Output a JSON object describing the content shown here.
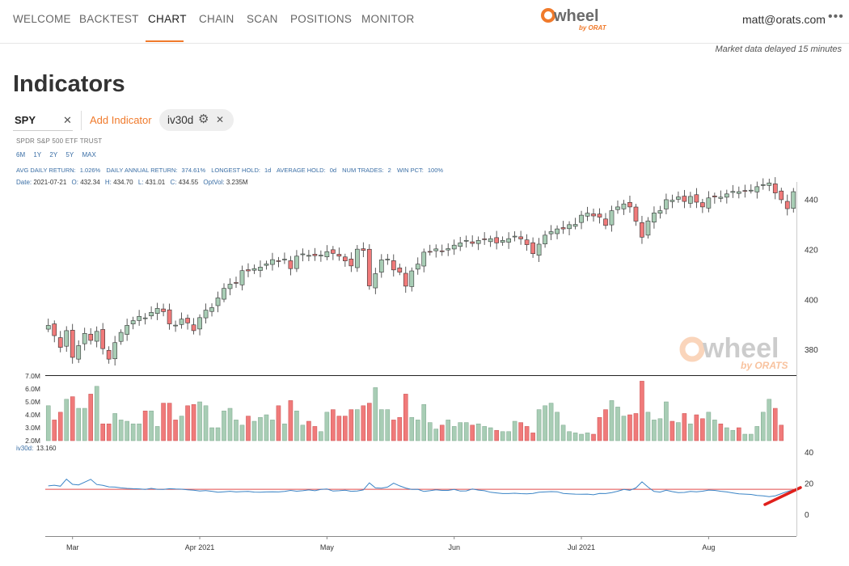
{
  "nav": {
    "items": [
      "WELCOME",
      "BACKTEST",
      "CHART",
      "CHAIN",
      "SCAN",
      "POSITIONS",
      "MONITOR"
    ],
    "active": "CHART",
    "accent": "#f07a2b"
  },
  "logo": {
    "text": "wheel",
    "sub": "by ORATS"
  },
  "user": {
    "email": "matt@orats.com",
    "menu_icon": "more-dots-icon"
  },
  "market_note": "Market data delayed 15 minutes",
  "page_title": "Indicators",
  "symbol": {
    "value": "SPY",
    "clear_icon": "close-icon"
  },
  "add_indicator_label": "Add Indicator",
  "indicator_chip": {
    "label": "iv30d",
    "settings_icon": "gear-icon",
    "remove_icon": "close-icon"
  },
  "etf_name": "SPDR S&P 500 ETF TRUST",
  "ranges": [
    "6M",
    "1Y",
    "2Y",
    "5Y",
    "MAX"
  ],
  "stats": [
    {
      "label": "AVG DAILY RETURN:",
      "value": "1.026%"
    },
    {
      "label": "DAILY ANNUAL RETURN:",
      "value": "374.61%"
    },
    {
      "label": "LONGEST HOLD:",
      "value": "1d"
    },
    {
      "label": "AVERAGE HOLD:",
      "value": "0d"
    },
    {
      "label": "NUM TRADES:",
      "value": "2"
    },
    {
      "label": "WIN PCT:",
      "value": "100%"
    }
  ],
  "ohlc": {
    "date_label": "Date:",
    "date": "2021-07-21",
    "o_label": "O:",
    "o": "432.34",
    "h_label": "H:",
    "h": "434.70",
    "l_label": "L:",
    "l": "431.01",
    "c_label": "C:",
    "c": "434.55",
    "vol_label": "OptVol:",
    "vol": "3.235M"
  },
  "iv_label": "iv30d:",
  "iv_value": "13.160",
  "colors": {
    "up": "#a8cdb5",
    "down": "#f07a7a",
    "iv_line": "#3a84c6",
    "ref_line": "#e24b4b",
    "annotation": "#e0201c"
  },
  "chart_data": [
    {
      "type": "candlestick",
      "name": "SPY",
      "y_ticks": [
        380,
        400,
        420,
        440
      ],
      "x_ticks": [
        "Mar",
        "Apr 2021",
        "May",
        "Jun",
        "Jul 2021",
        "Aug"
      ],
      "ylim": [
        370,
        447
      ],
      "close": [
        389.6,
        385.5,
        380.8,
        387.5,
        376.8,
        381.5,
        386.4,
        383.6,
        387.2,
        380.3,
        376.1,
        382.7,
        386.8,
        389.6,
        391.5,
        393.2,
        392.6,
        394.8,
        396.4,
        395.1,
        390.2,
        389.7,
        392.1,
        390.6,
        387.5,
        392.7,
        395.7,
        396.7,
        400.6,
        404.4,
        406.1,
        406.6,
        411.5,
        411.4,
        412.3,
        412.9,
        414.2,
        415.9,
        415.2,
        416.1,
        412.3,
        417.3,
        418.2,
        417.6,
        417.5,
        417.7,
        419.1,
        418.4,
        417.3,
        415.4,
        413.4,
        420.1,
        419.6,
        405.4,
        410.3,
        415.8,
        416.1,
        411.8,
        410.9,
        405.3,
        411.4,
        414.1,
        418.9,
        419.1,
        420.2,
        419.1,
        420.3,
        421.7,
        422.6,
        423.6,
        422.4,
        423.6,
        423.9,
        424.3,
        422.6,
        423.6,
        424.3,
        425.3,
        424.2,
        421.9,
        418.3,
        422.1,
        425.7,
        427.1,
        428.2,
        428.2,
        429.9,
        430.0,
        433.7,
        434.5,
        433.4,
        432.9,
        429.6,
        435.5,
        437.0,
        438.2,
        437.0,
        431.3,
        424.9,
        431.4,
        434.6,
        435.5,
        439.9,
        439.7,
        441.0,
        439.2,
        441.2,
        438.9,
        437.0,
        440.6,
        441.0,
        440.9,
        442.2,
        443.2,
        443.1,
        443.4,
        443.7,
        445.1,
        445.9,
        446.6,
        442.6,
        439.9,
        436.3,
        443.1
      ],
      "volume_ylim": [
        2.0,
        7.0
      ],
      "volume_ticks": [
        "2.0M",
        "3.0M",
        "4.0M",
        "5.0M",
        "6.0M",
        "7.0M"
      ],
      "volume_millions": [
        4.7,
        3.6,
        4.2,
        5.2,
        5.4,
        4.5,
        4.5,
        5.6,
        6.2,
        3.3,
        3.3,
        4.1,
        3.6,
        3.5,
        3.3,
        3.3,
        4.3,
        4.3,
        3.1,
        4.9,
        4.9,
        3.6,
        3.9,
        4.7,
        4.8,
        5.0,
        4.7,
        3.0,
        3.0,
        4.3,
        4.5,
        3.6,
        3.2,
        3.9,
        3.5,
        3.8,
        4.0,
        3.6,
        4.7,
        3.3,
        5.1,
        4.3,
        3.2,
        3.5,
        3.1,
        2.7,
        4.2,
        4.4,
        3.9,
        3.9,
        4.4,
        4.4,
        4.7,
        4.9,
        6.1,
        4.4,
        4.4,
        3.6,
        3.8,
        5.6,
        3.8,
        3.6,
        4.8,
        3.4,
        2.9,
        3.2,
        3.6,
        3.1,
        3.4,
        3.4,
        3.2,
        3.3,
        3.1,
        3.0,
        2.8,
        2.7,
        2.7,
        3.5,
        3.4,
        3.1,
        2.6,
        4.4,
        4.7,
        4.9,
        4.2,
        3.2,
        2.7,
        2.6,
        2.5,
        2.6,
        2.5,
        3.8,
        4.4,
        5.1,
        4.6,
        3.9,
        4.0,
        4.1,
        6.6,
        4.2,
        3.6,
        3.7,
        5.0,
        3.5,
        3.4,
        4.1,
        3.3,
        4.0,
        3.7,
        4.2,
        3.6,
        3.3,
        3.0,
        2.8,
        3.0,
        2.5,
        2.5,
        3.1,
        4.2,
        5.2,
        4.5,
        3.2
      ]
    },
    {
      "type": "line",
      "name": "iv30d",
      "y_ticks": [
        0,
        20,
        40
      ],
      "ylim": [
        -14,
        42
      ],
      "reference_line": 16,
      "values": [
        18.2,
        18.6,
        18.0,
        22.5,
        19.2,
        18.8,
        20.6,
        22.4,
        19.1,
        18.5,
        17.6,
        17.4,
        16.9,
        16.6,
        16.4,
        16.3,
        15.9,
        16.6,
        16.0,
        15.9,
        16.4,
        16.2,
        16.1,
        15.7,
        15.4,
        14.9,
        15.2,
        14.7,
        14.1,
        14.4,
        14.7,
        14.3,
        14.5,
        14.6,
        14.2,
        14.1,
        14.3,
        14.4,
        14.3,
        14.6,
        15.3,
        14.8,
        15.1,
        15.6,
        15.1,
        15.9,
        16.2,
        14.9,
        15.1,
        15.4,
        14.7,
        14.9,
        15.6,
        20.1,
        16.9,
        16.7,
        17.4,
        19.9,
        18.2,
        16.8,
        15.9,
        16.0,
        14.6,
        15.1,
        15.7,
        15.3,
        15.3,
        15.9,
        14.9,
        15.0,
        16.2,
        15.5,
        15.1,
        14.1,
        13.7,
        13.3,
        13.3,
        13.5,
        13.2,
        13.1,
        13.4,
        14.1,
        14.3,
        14.5,
        14.4,
        13.4,
        13.1,
        12.9,
        12.8,
        12.9,
        12.5,
        13.4,
        13.3,
        13.9,
        14.8,
        15.9,
        15.4,
        16.9,
        20.8,
        17.4,
        14.6,
        14.2,
        15.4,
        14.5,
        13.9,
        14.0,
        14.6,
        14.4,
        14.8,
        15.5,
        15.3,
        14.7,
        14.3,
        13.7,
        13.1,
        12.9,
        12.7,
        12.1,
        11.8,
        11.3,
        11.8,
        13.2,
        14.6,
        15.6
      ]
    }
  ]
}
